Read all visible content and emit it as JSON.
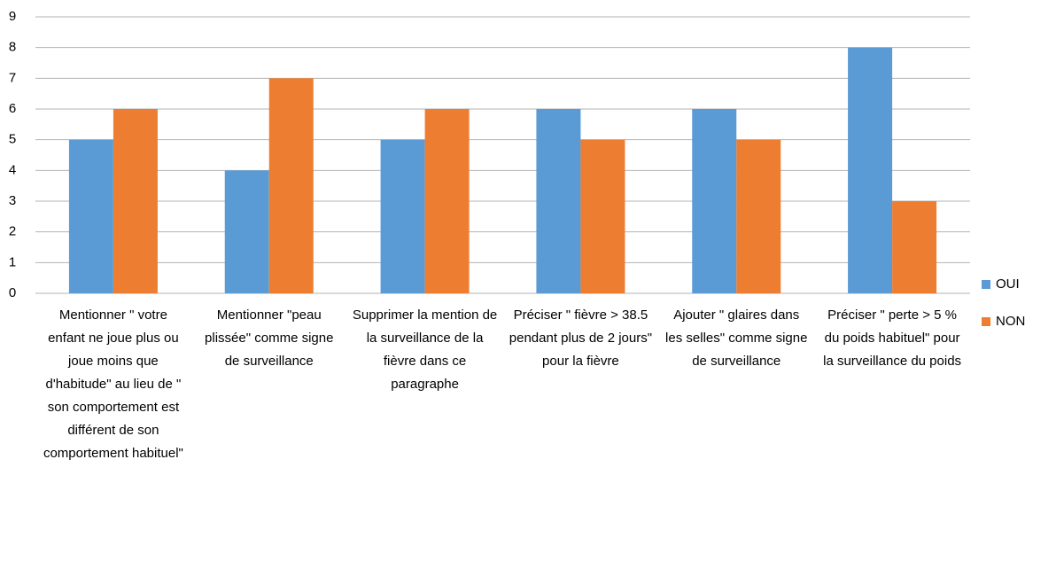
{
  "chart_data": {
    "type": "bar",
    "categories": [
      "Mentionner \" votre enfant ne joue plus ou joue moins que d'habitude\" au lieu de \" son comportement est différent de son comportement habituel\"",
      "Mentionner \"peau plissée\" comme signe de surveillance",
      "Supprimer la mention de la surveillance de la fièvre dans ce paragraphe",
      "Préciser \" fièvre > 38.5 pendant plus de 2 jours\" pour la fièvre",
      "Ajouter \" glaires dans les selles\" comme signe de surveillance",
      "Préciser \" perte > 5 % du poids habituel\" pour la surveillance du poids"
    ],
    "series": [
      {
        "name": "OUI",
        "color": "#5b9bd5",
        "values": [
          5,
          4,
          5,
          6,
          6,
          8
        ]
      },
      {
        "name": "NON",
        "color": "#ed7d31",
        "values": [
          6,
          7,
          6,
          5,
          5,
          3
        ]
      }
    ],
    "ylim": [
      0,
      9
    ],
    "yticks": [
      0,
      1,
      2,
      3,
      4,
      5,
      6,
      7,
      8,
      9
    ],
    "grid": true,
    "legend": "right"
  }
}
